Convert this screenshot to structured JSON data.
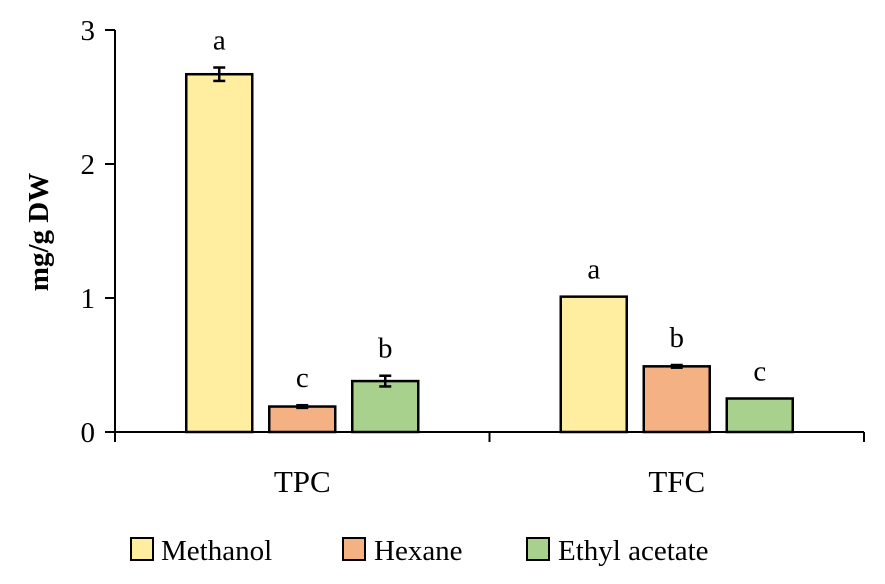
{
  "chart_data": {
    "type": "bar",
    "title": "",
    "xlabel": "",
    "ylabel": "mg/g DW",
    "ylim": [
      0,
      3
    ],
    "yticks": [
      0,
      1,
      2,
      3
    ],
    "grid": false,
    "legend_position": "bottom",
    "categories": [
      "TPC",
      "TFC"
    ],
    "series": [
      {
        "name": "Methanol",
        "color": "#FFEE9F",
        "values": [
          2.67,
          1.01
        ],
        "errors": [
          0.05,
          0.0
        ],
        "letters": [
          "a",
          "a"
        ]
      },
      {
        "name": "Hexane",
        "color": "#F4B183",
        "values": [
          0.19,
          0.49
        ],
        "errors": [
          0.01,
          0.01
        ],
        "letters": [
          "c",
          "b"
        ]
      },
      {
        "name": "Ethyl acetate",
        "color": "#A9D18E",
        "values": [
          0.38,
          0.25
        ],
        "errors": [
          0.04,
          0.0
        ],
        "letters": [
          "b",
          "c"
        ]
      }
    ]
  }
}
